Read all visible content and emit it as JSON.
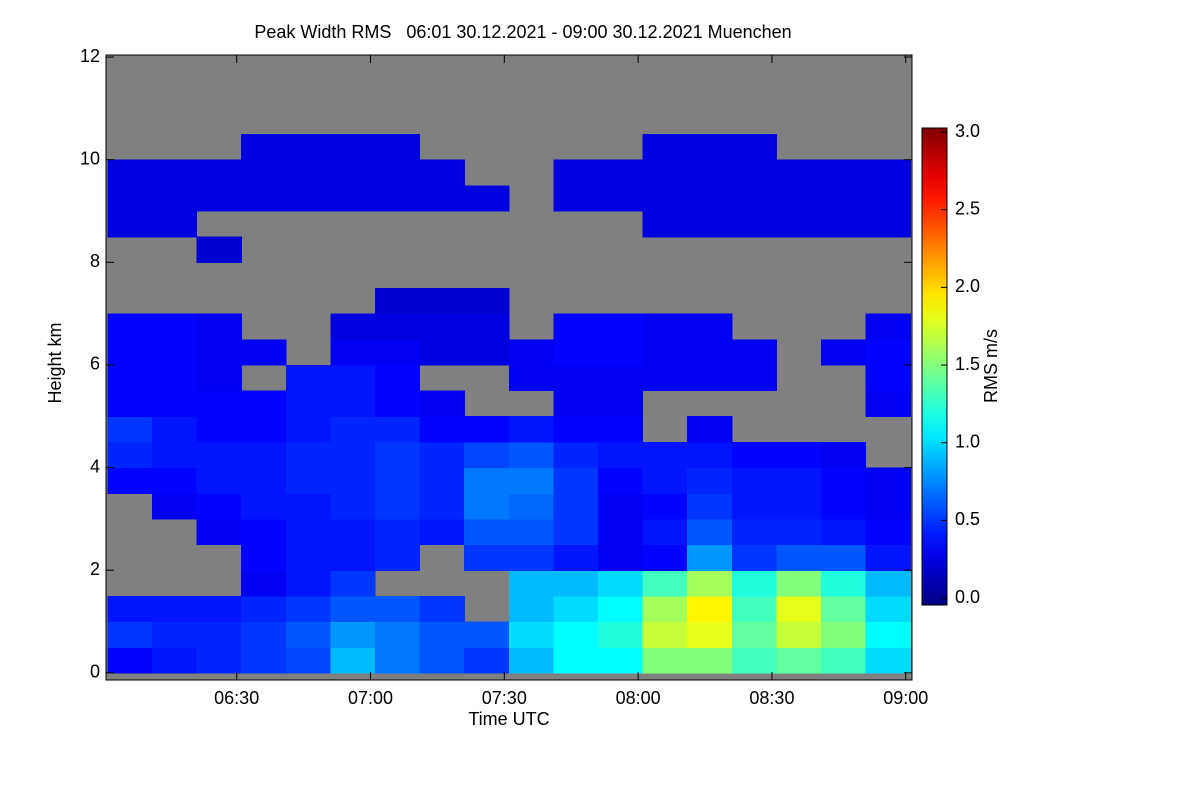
{
  "chart_data": {
    "type": "heatmap",
    "title": "Peak Width RMS   06:01 30.12.2021 - 09:00 30.12.2021 Muenchen",
    "x_label": "Time UTC",
    "y_label": "Height km",
    "colorbar_label": "RMS m/s",
    "colormap": "jet",
    "missing_color": "#808080",
    "xlim": [
      360.7,
      541.4
    ],
    "xticks": [
      {
        "value": 390,
        "label": "06:30"
      },
      {
        "value": 420,
        "label": "07:00"
      },
      {
        "value": 450,
        "label": "07:30"
      },
      {
        "value": 480,
        "label": "08:00"
      },
      {
        "value": 510,
        "label": "08:30"
      },
      {
        "value": 540,
        "label": "09:00"
      }
    ],
    "ylim": [
      -0.14,
      12.04
    ],
    "yticks": [
      0,
      2,
      4,
      6,
      8,
      10,
      12
    ],
    "clim": [
      -0.045,
      3.026
    ],
    "cticks": [
      {
        "value": 0,
        "label": "0.0"
      },
      0.5,
      {
        "value": 1,
        "label": "1.0"
      },
      1.5,
      {
        "value": 2,
        "label": "2.0"
      },
      2.5,
      {
        "value": 3,
        "label": "3.0"
      }
    ],
    "x_bins": [
      361,
      371,
      381,
      391,
      401,
      411,
      421,
      431,
      441,
      451,
      461,
      471,
      481,
      491,
      501,
      511,
      521,
      531,
      541
    ],
    "y_bins": [
      0,
      0.5,
      1,
      1.5,
      2,
      2.5,
      3,
      3.5,
      4,
      4.5,
      5,
      5.5,
      6,
      6.5,
      7,
      7.5,
      8,
      8.5,
      9,
      9.5,
      10,
      10.5,
      11,
      11.5,
      12
    ],
    "z": [
      [
        0.35,
        0.4,
        0.45,
        0.5,
        0.55,
        0.9,
        0.7,
        0.6,
        0.5,
        0.9,
        1.1,
        1.1,
        1.5,
        1.5,
        1.3,
        1.4,
        1.3,
        1.0
      ],
      [
        0.5,
        0.45,
        0.45,
        0.5,
        0.6,
        0.8,
        0.7,
        0.6,
        0.6,
        1.0,
        1.1,
        1.2,
        1.7,
        1.8,
        1.4,
        1.7,
        1.5,
        1.1
      ],
      [
        0.4,
        0.4,
        0.4,
        0.45,
        0.5,
        0.6,
        0.6,
        0.5,
        null,
        0.9,
        1.0,
        1.1,
        1.6,
        1.9,
        1.3,
        1.8,
        1.4,
        1.0
      ],
      [
        null,
        null,
        null,
        0.3,
        0.4,
        0.5,
        null,
        null,
        null,
        0.9,
        0.9,
        1.0,
        1.3,
        1.6,
        1.2,
        1.5,
        1.2,
        0.9
      ],
      [
        null,
        null,
        null,
        0.35,
        0.4,
        0.4,
        0.45,
        null,
        0.5,
        0.5,
        0.4,
        0.3,
        0.35,
        0.8,
        0.5,
        0.6,
        0.6,
        0.4
      ],
      [
        null,
        null,
        0.3,
        0.35,
        0.4,
        0.4,
        0.45,
        0.4,
        0.6,
        0.6,
        0.5,
        0.3,
        0.4,
        0.6,
        0.45,
        0.45,
        0.4,
        0.35
      ],
      [
        null,
        0.3,
        0.35,
        0.4,
        0.4,
        0.45,
        0.5,
        0.45,
        0.7,
        0.65,
        0.5,
        0.3,
        0.35,
        0.5,
        0.4,
        0.4,
        0.35,
        0.3
      ],
      [
        0.35,
        0.35,
        0.4,
        0.4,
        0.45,
        0.45,
        0.5,
        0.45,
        0.7,
        0.7,
        0.5,
        0.35,
        0.4,
        0.45,
        0.4,
        0.4,
        0.35,
        0.3
      ],
      [
        0.45,
        0.4,
        0.4,
        0.4,
        0.45,
        0.45,
        0.5,
        0.45,
        0.55,
        0.6,
        0.45,
        0.4,
        0.4,
        0.4,
        0.35,
        0.35,
        0.3,
        null
      ],
      [
        0.5,
        0.4,
        0.35,
        0.35,
        0.4,
        0.45,
        0.45,
        0.35,
        0.35,
        0.4,
        0.35,
        0.35,
        null,
        0.3,
        null,
        null,
        null,
        null
      ],
      [
        0.35,
        0.35,
        0.35,
        0.35,
        0.4,
        0.4,
        0.35,
        0.3,
        null,
        null,
        0.3,
        0.3,
        null,
        null,
        null,
        null,
        null,
        0.3
      ],
      [
        0.35,
        0.35,
        0.3,
        null,
        0.4,
        0.4,
        0.35,
        null,
        null,
        0.3,
        0.3,
        0.3,
        0.3,
        0.3,
        0.3,
        null,
        null,
        0.35
      ],
      [
        0.35,
        0.35,
        0.3,
        0.3,
        null,
        0.3,
        0.3,
        0.25,
        0.25,
        0.3,
        0.35,
        0.35,
        0.3,
        0.3,
        0.3,
        null,
        0.3,
        0.35
      ],
      [
        0.35,
        0.35,
        0.3,
        null,
        null,
        0.25,
        0.25,
        0.25,
        0.25,
        null,
        0.35,
        0.35,
        0.3,
        0.3,
        null,
        null,
        null,
        0.3
      ],
      [
        null,
        null,
        null,
        null,
        null,
        null,
        0.2,
        0.2,
        0.2,
        null,
        null,
        null,
        null,
        null,
        null,
        null,
        null,
        null
      ],
      [
        null,
        null,
        null,
        null,
        null,
        null,
        null,
        null,
        null,
        null,
        null,
        null,
        null,
        null,
        null,
        null,
        null,
        null
      ],
      [
        null,
        null,
        0.2,
        null,
        null,
        null,
        null,
        null,
        null,
        null,
        null,
        null,
        null,
        null,
        null,
        null,
        null,
        null
      ],
      [
        0.25,
        0.25,
        null,
        null,
        null,
        null,
        null,
        null,
        null,
        null,
        null,
        null,
        0.25,
        0.25,
        0.25,
        0.25,
        0.25,
        0.25
      ],
      [
        0.25,
        0.25,
        0.25,
        0.25,
        0.25,
        0.25,
        0.25,
        0.25,
        0.25,
        null,
        0.25,
        0.25,
        0.25,
        0.25,
        0.25,
        0.25,
        0.25,
        0.25
      ],
      [
        0.25,
        0.25,
        0.25,
        0.25,
        0.25,
        0.25,
        0.25,
        0.25,
        null,
        null,
        0.25,
        0.25,
        0.25,
        0.25,
        0.25,
        0.25,
        0.25,
        0.25
      ],
      [
        null,
        null,
        null,
        0.25,
        0.25,
        0.25,
        0.25,
        null,
        null,
        null,
        null,
        null,
        0.25,
        0.25,
        0.25,
        null,
        null,
        null
      ],
      [
        null,
        null,
        null,
        null,
        null,
        null,
        null,
        null,
        null,
        null,
        null,
        null,
        null,
        null,
        null,
        null,
        null,
        null
      ],
      [
        null,
        null,
        null,
        null,
        null,
        null,
        null,
        null,
        null,
        null,
        null,
        null,
        null,
        null,
        null,
        null,
        null,
        null
      ],
      [
        null,
        null,
        null,
        null,
        null,
        null,
        null,
        null,
        null,
        null,
        null,
        null,
        null,
        null,
        null,
        null,
        null,
        null
      ]
    ]
  }
}
